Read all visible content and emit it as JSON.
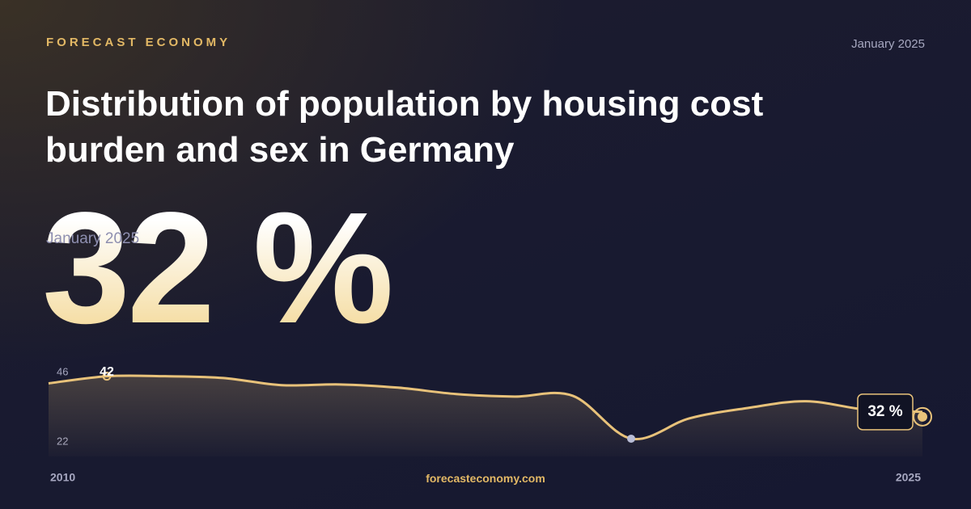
{
  "brand": "FORECAST ECONOMY",
  "date": "January 2025",
  "footer": "forecasteconomy.com",
  "chart_data": {
    "type": "line",
    "title": "Distribution of population by housing cost burden and sex in Germany",
    "x": [
      2010,
      2011,
      2012,
      2013,
      2014,
      2015,
      2016,
      2017,
      2018,
      2019,
      2020,
      2021,
      2022,
      2023,
      2024,
      2025
    ],
    "series": [
      {
        "color": "#e8c27a",
        "values": [
          40,
          42,
          42,
          41.5,
          39.5,
          39.7,
          38.8,
          37,
          36.3,
          36.5,
          24.5,
          30.2,
          33.1,
          35,
          32.7,
          32
        ]
      }
    ],
    "xlim": [
      2010,
      2025
    ],
    "xticks": [
      2010,
      2025
    ],
    "ylim": [
      22,
      46
    ],
    "yticks": [
      22,
      46
    ],
    "annotations": [
      {
        "x": 2011,
        "y": 42
      }
    ],
    "latest": {
      "x": 2025,
      "value": 32,
      "label": "32 %"
    }
  }
}
